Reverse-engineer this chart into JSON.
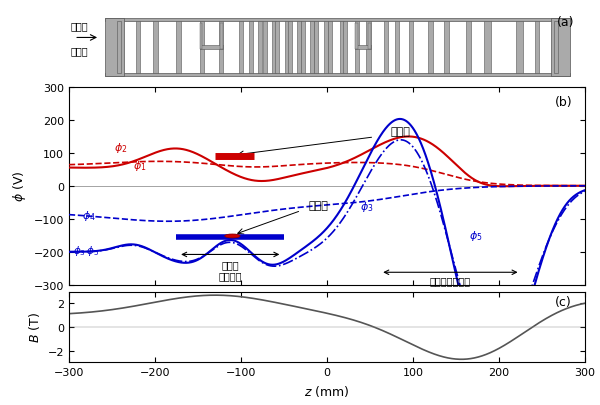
{
  "title_a": "(a)",
  "title_b": "(b)",
  "title_c": "(c)",
  "phi_ylabel": "$\\phi$ (V)",
  "B_ylabel": "$B$ (T)",
  "z_xlabel": "$z$ (mm)",
  "label_antiproton": "反陽子",
  "label_positron": "陽電子",
  "label_nested_trap": "入れ子\nトラップ",
  "label_reionization_trap": "再電離トラップ",
  "red_color": "#cc0000",
  "blue_color": "#0000cc",
  "gray_color": "#555555",
  "electrode_color": "#aaaaaa",
  "background_color": "#ffffff"
}
